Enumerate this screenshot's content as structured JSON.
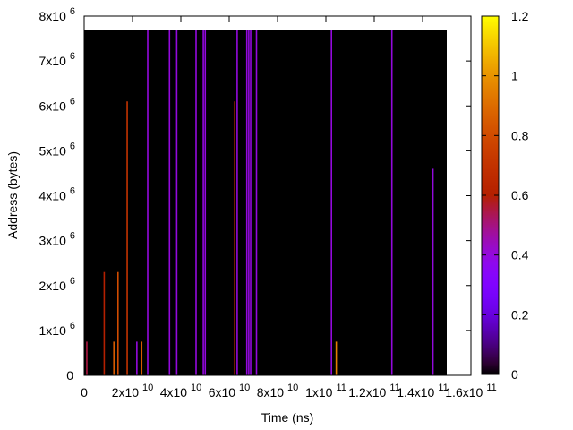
{
  "chart_data": {
    "type": "heatmap",
    "title": "",
    "xlabel": "Time (ns)",
    "ylabel": "Address (bytes)",
    "xlim": [
      0,
      160000000000
    ],
    "ylim": [
      0,
      8000000
    ],
    "grid": false,
    "background_color": "#000000",
    "background_extent": {
      "x": [
        0,
        150000000000
      ],
      "y": [
        0,
        7700000
      ]
    },
    "x_ticks": [
      {
        "value": 0,
        "mantissa": "0",
        "exponent": ""
      },
      {
        "value": 20000000000,
        "mantissa": "2x10",
        "exponent": "10"
      },
      {
        "value": 40000000000,
        "mantissa": "4x10",
        "exponent": "10"
      },
      {
        "value": 60000000000,
        "mantissa": "6x10",
        "exponent": "10"
      },
      {
        "value": 80000000000,
        "mantissa": "8x10",
        "exponent": "10"
      },
      {
        "value": 100000000000,
        "mantissa": "1x10",
        "exponent": "11"
      },
      {
        "value": 120000000000,
        "mantissa": "1.2x10",
        "exponent": "11"
      },
      {
        "value": 140000000000,
        "mantissa": "1.4x10",
        "exponent": "11"
      },
      {
        "value": 160000000000,
        "mantissa": "1.6x10",
        "exponent": "11"
      }
    ],
    "y_ticks": [
      {
        "value": 0,
        "mantissa": "0",
        "exponent": ""
      },
      {
        "value": 1000000,
        "mantissa": "1x10",
        "exponent": "6"
      },
      {
        "value": 2000000,
        "mantissa": "2x10",
        "exponent": "6"
      },
      {
        "value": 3000000,
        "mantissa": "3x10",
        "exponent": "6"
      },
      {
        "value": 4000000,
        "mantissa": "4x10",
        "exponent": "6"
      },
      {
        "value": 5000000,
        "mantissa": "5x10",
        "exponent": "6"
      },
      {
        "value": 6000000,
        "mantissa": "6x10",
        "exponent": "6"
      },
      {
        "value": 7000000,
        "mantissa": "7x10",
        "exponent": "6"
      },
      {
        "value": 8000000,
        "mantissa": "8x10",
        "exponent": "6"
      }
    ],
    "colorbar": {
      "range": [
        0,
        1.2
      ],
      "ticks": [
        "0",
        "0.2",
        "0.4",
        "0.6",
        "0.8",
        "1",
        "1.2"
      ],
      "tick_values": [
        0,
        0.2,
        0.4,
        0.6,
        0.8,
        1.0,
        1.2
      ],
      "colormap": "gnuplot-pm3d"
    },
    "stripes": [
      {
        "x": 800000000,
        "y0": 0,
        "y1": 750000,
        "value": 0.55
      },
      {
        "x": 8000000000,
        "y0": 0,
        "y1": 2300000,
        "value": 0.6
      },
      {
        "x": 12000000000,
        "y0": 0,
        "y1": 750000,
        "value": 0.85
      },
      {
        "x": 13700000000,
        "y0": 0,
        "y1": 2300000,
        "value": 0.8
      },
      {
        "x": 17500000000,
        "y0": 0,
        "y1": 6100000,
        "value": 0.7
      },
      {
        "x": 21500000000,
        "y0": 0,
        "y1": 750000,
        "value": 0.4
      },
      {
        "x": 23500000000,
        "y0": 0,
        "y1": 750000,
        "value": 0.85
      },
      {
        "x": 26000000000,
        "y0": 0,
        "y1": 7700000,
        "value": 0.4
      },
      {
        "x": 35000000000,
        "y0": 0,
        "y1": 7700000,
        "value": 0.4
      },
      {
        "x": 38000000000,
        "y0": 0,
        "y1": 7700000,
        "value": 0.4
      },
      {
        "x": 46000000000,
        "y0": 0,
        "y1": 7700000,
        "value": 0.4
      },
      {
        "x": 49000000000,
        "y0": 0,
        "y1": 7700000,
        "value": 0.4
      },
      {
        "x": 49800000000,
        "y0": 0,
        "y1": 7700000,
        "value": 0.4
      },
      {
        "x": 62000000000,
        "y0": 0,
        "y1": 6100000,
        "value": 0.65
      },
      {
        "x": 63000000000,
        "y0": 0,
        "y1": 7700000,
        "value": 0.4
      },
      {
        "x": 67000000000,
        "y0": 0,
        "y1": 7700000,
        "value": 0.4
      },
      {
        "x": 67800000000,
        "y0": 0,
        "y1": 7700000,
        "value": 0.4
      },
      {
        "x": 68600000000,
        "y0": 0,
        "y1": 7700000,
        "value": 0.4
      },
      {
        "x": 71000000000,
        "y0": 0,
        "y1": 7700000,
        "value": 0.4
      },
      {
        "x": 102000000000,
        "y0": 0,
        "y1": 7700000,
        "value": 0.4
      },
      {
        "x": 104000000000,
        "y0": 0,
        "y1": 750000,
        "value": 0.95
      },
      {
        "x": 127000000000,
        "y0": 0,
        "y1": 7700000,
        "value": 0.4
      },
      {
        "x": 144000000000,
        "y0": 0,
        "y1": 4600000,
        "value": 0.4
      }
    ]
  }
}
